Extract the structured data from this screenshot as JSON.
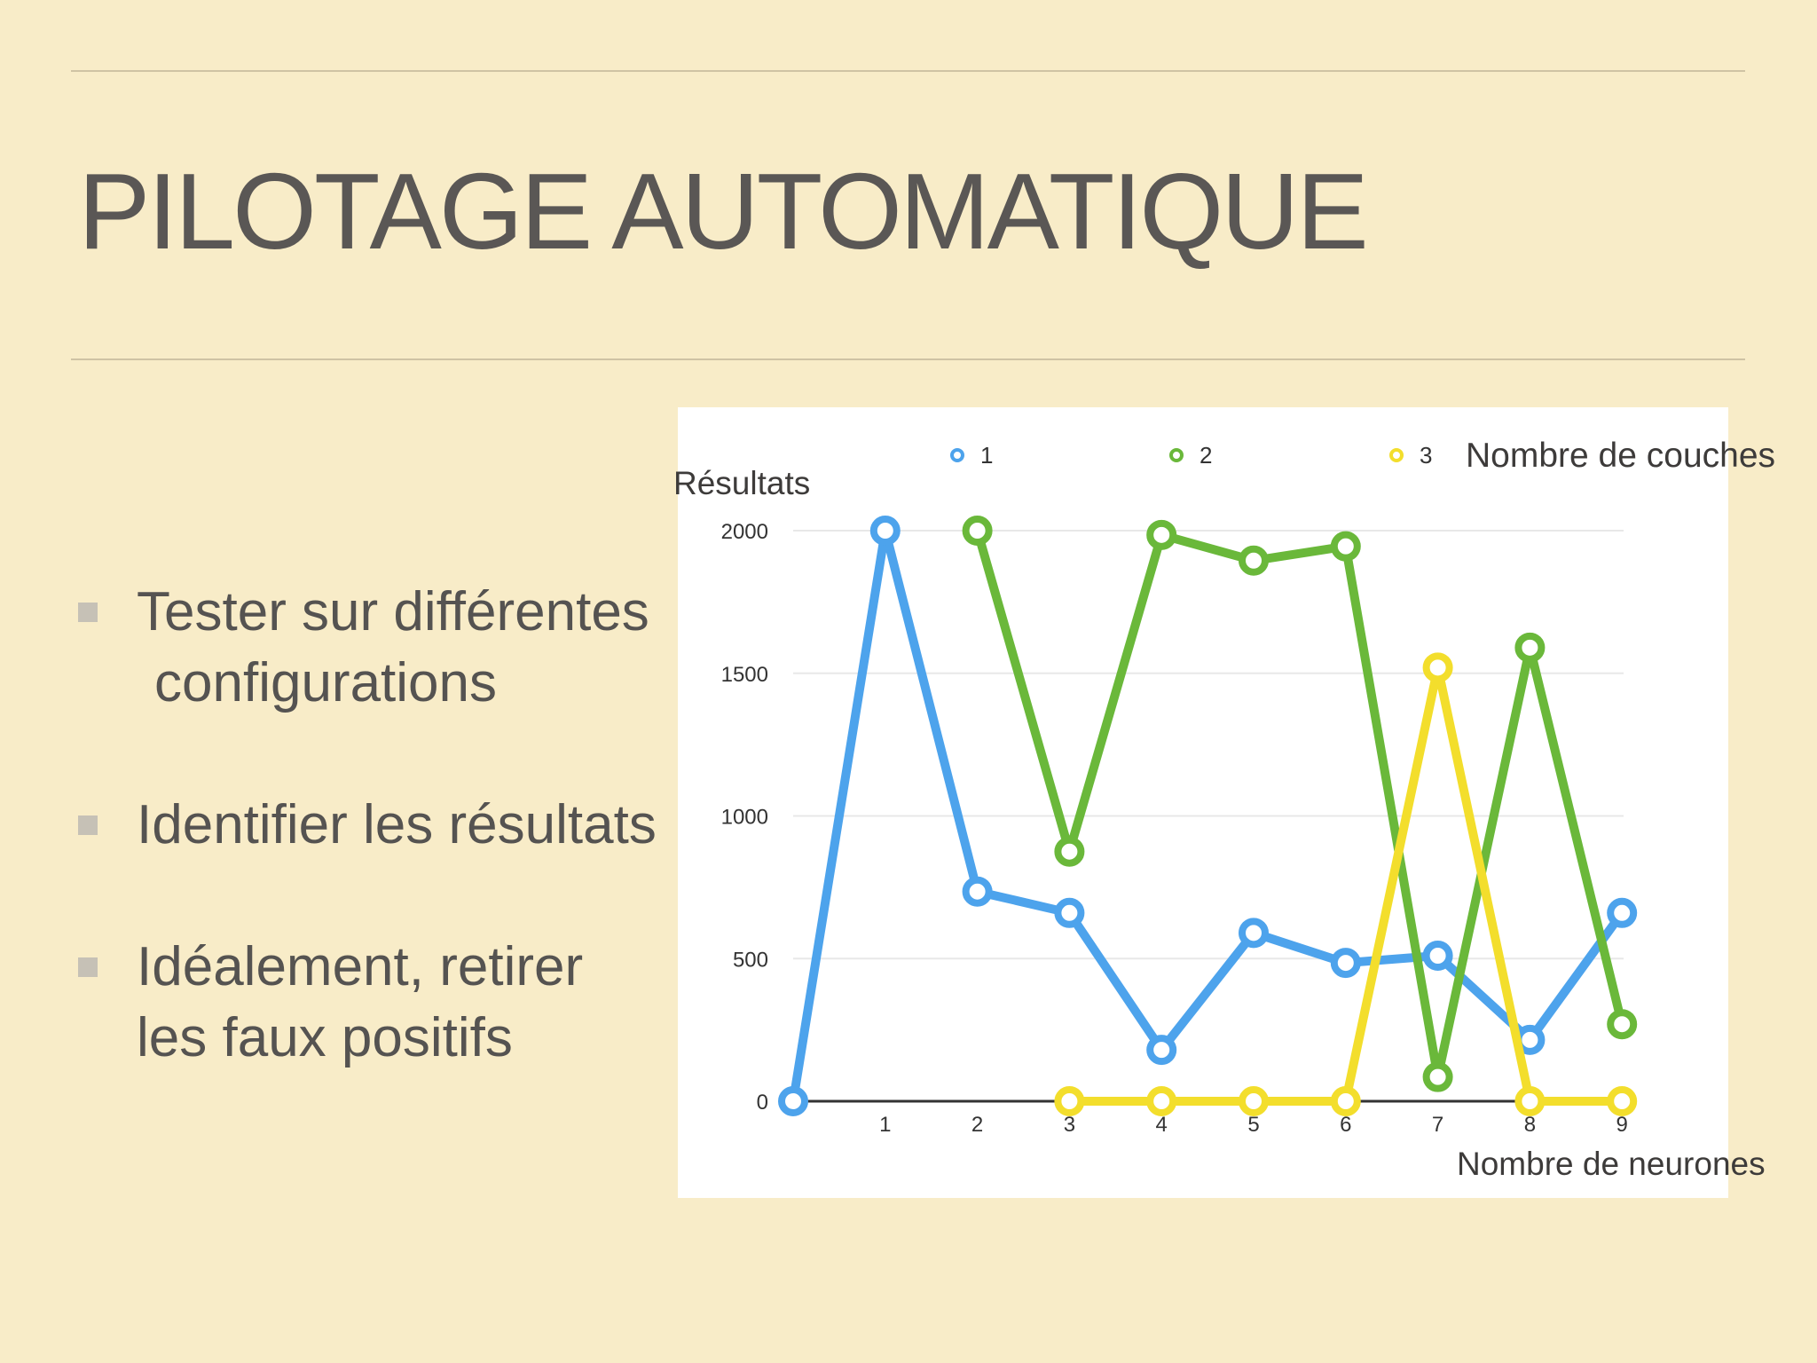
{
  "slide": {
    "title": "PILOTAGE AUTOMATIQUE",
    "bullets": [
      {
        "line1": "Tester sur différentes",
        "line2": "configurations"
      },
      {
        "line1": "Identifier les résultats"
      },
      {
        "line1": "Idéalement, retirer",
        "line2": "les faux positifs"
      }
    ]
  },
  "chart_data": {
    "type": "line",
    "ylabel": "Résultats",
    "xlabel": "Nombre de neurones",
    "legend_title": "Nombre de couches",
    "legend_position": "top",
    "grid": true,
    "ylim": [
      0,
      2000
    ],
    "yticks": [
      0,
      500,
      1000,
      1500,
      2000
    ],
    "x": [
      0,
      1,
      2,
      3,
      4,
      5,
      6,
      7,
      8,
      9
    ],
    "xtick_labels": [
      "1",
      "2",
      "3",
      "4",
      "5",
      "6",
      "7",
      "8",
      "9"
    ],
    "series": [
      {
        "name": "1",
        "color": "#4da3ec",
        "values": [
          0,
          2000,
          735,
          660,
          180,
          590,
          485,
          510,
          215,
          660
        ]
      },
      {
        "name": "2",
        "color": "#6ab83a",
        "values": [
          null,
          null,
          2000,
          875,
          1985,
          1895,
          1945,
          85,
          1590,
          270
        ]
      },
      {
        "name": "3",
        "color": "#f3de2c",
        "values": [
          null,
          null,
          null,
          0,
          0,
          0,
          0,
          1520,
          0,
          0
        ]
      }
    ]
  }
}
